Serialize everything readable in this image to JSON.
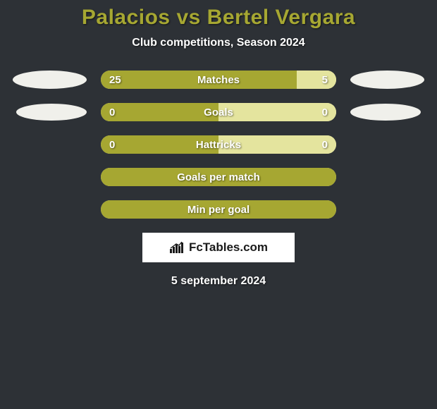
{
  "title": "Palacios vs Bertel Vergara",
  "subtitle": "Club competitions, Season 2024",
  "date": "5 september 2024",
  "colors": {
    "background": "#2d3136",
    "title_color": "#a6a732",
    "text_color": "#ffffff",
    "bar_olive": "#a6a732",
    "bar_light": "#e4e49e",
    "ellipse_fill": "#f0f0eb"
  },
  "fonts": {
    "title_size": 30,
    "subtitle_size": 16,
    "bar_label_size": 15
  },
  "rows": [
    {
      "label": "Matches",
      "left_value": "25",
      "right_value": "5",
      "left_pct": 83.3,
      "right_pct": 16.7,
      "show_ellipses": "large"
    },
    {
      "label": "Goals",
      "left_value": "0",
      "right_value": "0",
      "left_pct": 50,
      "right_pct": 50,
      "show_ellipses": "med"
    },
    {
      "label": "Hattricks",
      "left_value": "0",
      "right_value": "0",
      "left_pct": 50,
      "right_pct": 50,
      "show_ellipses": "none"
    },
    {
      "label": "Goals per match",
      "left_value": "",
      "right_value": "",
      "left_pct": 100,
      "right_pct": 0,
      "show_ellipses": "none"
    },
    {
      "label": "Min per goal",
      "left_value": "",
      "right_value": "",
      "left_pct": 100,
      "right_pct": 0,
      "show_ellipses": "none"
    }
  ],
  "branding": {
    "text": "FcTables.com"
  }
}
